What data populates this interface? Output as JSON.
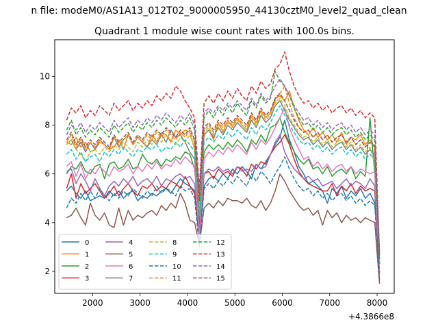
{
  "suptitle": "n file: modeM0/AS1A13_012T02_9000005950_44130cztM0_level2_quad_clean",
  "chart_data": {
    "type": "line",
    "title": "Quadrant 1 module wise count rates with 100.0s bins.",
    "xlabel": "",
    "ylabel": "",
    "x_offset_label": "+4.3866e8",
    "xlim": [
      1200,
      8360
    ],
    "ylim": [
      1.1,
      11.5
    ],
    "xticks": [
      2000,
      3000,
      4000,
      5000,
      6000,
      7000,
      8000
    ],
    "yticks": [
      2,
      4,
      6,
      8,
      10
    ],
    "grid": false,
    "legend_position": "lower-left",
    "legend_columns": 4,
    "x": [
      1450,
      1550,
      1650,
      1750,
      1850,
      1950,
      2050,
      2150,
      2250,
      2350,
      2450,
      2550,
      2650,
      2750,
      2850,
      2950,
      3050,
      3150,
      3250,
      3350,
      3450,
      3550,
      3650,
      3750,
      3850,
      3950,
      4050,
      4150,
      4250,
      4350,
      4450,
      4550,
      4650,
      4750,
      4850,
      4950,
      5050,
      5150,
      5250,
      5350,
      5450,
      5550,
      5650,
      5750,
      5850,
      5950,
      6050,
      6150,
      6250,
      6350,
      6450,
      6550,
      6650,
      6750,
      6850,
      6950,
      7050,
      7150,
      7250,
      7350,
      7450,
      7550,
      7650,
      7750,
      7850,
      7950,
      8050
    ],
    "series": [
      {
        "name": "0",
        "color": "#1f77b4",
        "dash": "solid",
        "values": [
          5.3,
          5.5,
          5.2,
          5.0,
          5.3,
          4.9,
          5.0,
          5.1,
          5.0,
          5.3,
          5.1,
          5.3,
          5.0,
          5.2,
          5.3,
          4.9,
          5.1,
          5.0,
          5.2,
          5.1,
          5.3,
          5.4,
          5.2,
          5.5,
          5.8,
          5.6,
          5.5,
          5.3,
          3.3,
          5.5,
          5.8,
          5.9,
          5.7,
          6.0,
          5.8,
          6.2,
          6.0,
          6.3,
          6.1,
          5.8,
          6.4,
          6.2,
          6.5,
          6.8,
          7.2,
          7.5,
          8.2,
          7.4,
          6.9,
          6.3,
          6.0,
          5.6,
          5.7,
          5.5,
          5.3,
          4.8,
          5.4,
          5.2,
          5.5,
          5.0,
          5.3,
          5.1,
          5.4,
          5.0,
          5.2,
          4.8,
          2.3
        ]
      },
      {
        "name": "1",
        "color": "#ff7f0e",
        "dash": "solid",
        "values": [
          7.3,
          7.2,
          7.5,
          7.1,
          7.3,
          6.9,
          7.0,
          7.3,
          7.2,
          7.0,
          7.1,
          7.4,
          7.0,
          7.6,
          7.2,
          7.5,
          7.3,
          7.1,
          7.6,
          7.3,
          7.7,
          7.6,
          7.3,
          7.8,
          7.6,
          7.8,
          7.7,
          7.0,
          4.0,
          7.6,
          7.8,
          7.4,
          8.1,
          7.7,
          8.2,
          7.9,
          8.3,
          8.0,
          7.8,
          8.4,
          8.1,
          8.6,
          8.3,
          8.5,
          9.1,
          9.2,
          9.0,
          9.4,
          8.7,
          8.2,
          7.8,
          7.6,
          7.9,
          7.5,
          7.7,
          7.4,
          7.6,
          7.3,
          7.7,
          7.2,
          7.5,
          7.4,
          7.6,
          7.2,
          7.4,
          7.1,
          2.6
        ]
      },
      {
        "name": "2",
        "color": "#2ca02c",
        "dash": "solid",
        "values": [
          6.0,
          6.3,
          6.2,
          6.5,
          6.1,
          6.0,
          6.3,
          6.4,
          5.8,
          6.4,
          6.5,
          6.2,
          6.3,
          6.6,
          6.2,
          6.3,
          6.8,
          6.5,
          6.4,
          6.6,
          6.3,
          6.6,
          6.5,
          6.7,
          6.6,
          6.9,
          6.8,
          6.2,
          3.9,
          6.9,
          7.2,
          7.0,
          7.2,
          7.0,
          7.3,
          7.1,
          7.4,
          7.2,
          6.9,
          7.4,
          7.2,
          7.6,
          7.3,
          7.9,
          8.0,
          8.3,
          7.7,
          7.3,
          6.9,
          6.6,
          6.4,
          6.6,
          6.2,
          6.3,
          6.0,
          6.3,
          5.9,
          6.1,
          6.2,
          6.0,
          6.3,
          5.8,
          6.1,
          5.9,
          8.3,
          6.0,
          2.3
        ]
      },
      {
        "name": "3",
        "color": "#d62728",
        "dash": "solid",
        "values": [
          5.4,
          6.0,
          5.0,
          5.6,
          5.2,
          5.4,
          5.6,
          5.3,
          5.0,
          5.2,
          5.5,
          5.1,
          5.4,
          5.6,
          5.3,
          5.1,
          5.5,
          5.4,
          5.6,
          5.3,
          5.5,
          5.4,
          5.7,
          5.6,
          5.4,
          5.9,
          5.5,
          5.2,
          3.5,
          6.0,
          6.1,
          5.8,
          6.2,
          6.0,
          6.1,
          5.9,
          6.3,
          6.2,
          5.9,
          6.4,
          6.2,
          6.5,
          6.4,
          6.8,
          7.1,
          7.3,
          7.6,
          7.2,
          6.6,
          6.1,
          5.8,
          5.6,
          5.5,
          5.4,
          5.3,
          5.3,
          5.6,
          5.1,
          5.5,
          5.3,
          5.6,
          5.2,
          5.5,
          5.3,
          5.4,
          5.3,
          1.6
        ]
      },
      {
        "name": "4",
        "color": "#9467bd",
        "dash": "solid",
        "values": [
          6.1,
          6.2,
          5.6,
          6.0,
          5.7,
          5.3,
          5.8,
          5.4,
          5.1,
          5.5,
          5.7,
          5.5,
          5.8,
          5.6,
          5.9,
          5.5,
          5.7,
          5.8,
          5.6,
          5.9,
          5.5,
          5.8,
          5.7,
          5.9,
          6.0,
          5.8,
          5.9,
          5.6,
          3.7,
          6.0,
          6.2,
          6.1,
          6.3,
          6.1,
          6.2,
          6.0,
          6.3,
          6.1,
          6.2,
          6.1,
          6.4,
          6.2,
          6.3,
          6.8,
          7.3,
          7.6,
          6.9,
          6.5,
          6.2,
          6.0,
          5.8,
          5.9,
          5.7,
          5.8,
          5.5,
          5.6,
          5.7,
          5.4,
          5.6,
          5.8,
          5.5,
          5.7,
          5.6,
          5.4,
          5.8,
          5.5,
          2.3
        ]
      },
      {
        "name": "5",
        "color": "#8c564b",
        "dash": "solid",
        "values": [
          4.2,
          4.3,
          4.6,
          4.2,
          3.9,
          4.8,
          4.3,
          4.1,
          4.4,
          3.9,
          3.8,
          4.6,
          3.9,
          4.5,
          4.1,
          4.3,
          4.2,
          4.4,
          4.5,
          4.3,
          4.7,
          4.5,
          4.8,
          4.6,
          5.2,
          4.8,
          4.1,
          4.0,
          3.1,
          4.6,
          4.8,
          4.6,
          4.9,
          4.7,
          5.0,
          4.9,
          4.9,
          4.8,
          5.0,
          4.7,
          4.6,
          4.9,
          4.5,
          4.8,
          5.3,
          6.0,
          5.7,
          5.3,
          5.0,
          4.7,
          4.5,
          4.6,
          4.3,
          4.5,
          3.9,
          4.5,
          4.2,
          4.4,
          4.0,
          4.3,
          4.1,
          4.2,
          4.0,
          4.2,
          4.1,
          4.0,
          1.5
        ]
      },
      {
        "name": "6",
        "color": "#e377c2",
        "dash": "solid",
        "values": [
          6.3,
          6.5,
          5.9,
          6.4,
          5.8,
          6.2,
          6.0,
          6.3,
          6.1,
          5.9,
          6.3,
          6.1,
          6.2,
          6.4,
          6.0,
          6.3,
          6.1,
          6.4,
          6.2,
          6.5,
          6.2,
          6.4,
          6.3,
          6.6,
          6.4,
          6.7,
          6.5,
          6.3,
          3.4,
          6.6,
          6.9,
          6.7,
          7.0,
          6.8,
          7.1,
          6.9,
          7.2,
          7.0,
          6.8,
          7.3,
          7.0,
          7.4,
          7.2,
          7.5,
          7.9,
          8.3,
          8.7,
          7.9,
          7.4,
          7.0,
          6.6,
          6.7,
          6.3,
          6.5,
          6.2,
          6.4,
          6.1,
          6.3,
          6.4,
          6.1,
          6.3,
          6.0,
          6.2,
          6.1,
          6.0,
          6.1,
          2.0
        ]
      },
      {
        "name": "7",
        "color": "#7f7f7f",
        "dash": "solid",
        "values": [
          7.2,
          7.4,
          7.0,
          7.3,
          6.9,
          7.3,
          7.0,
          7.4,
          7.2,
          7.0,
          7.5,
          7.1,
          7.4,
          7.6,
          7.2,
          7.5,
          7.3,
          7.1,
          7.4,
          7.2,
          7.6,
          7.3,
          7.8,
          7.5,
          7.6,
          7.3,
          6.9,
          6.6,
          4.7,
          7.6,
          7.8,
          7.5,
          7.9,
          7.6,
          8.0,
          7.8,
          8.1,
          7.9,
          7.7,
          8.2,
          7.9,
          8.4,
          8.1,
          8.3,
          8.8,
          9.0,
          8.6,
          8.2,
          7.9,
          7.6,
          7.4,
          7.5,
          7.2,
          7.4,
          7.1,
          7.3,
          7.0,
          7.2,
          7.3,
          7.0,
          7.2,
          6.9,
          7.1,
          6.8,
          7.0,
          6.8,
          2.8
        ]
      },
      {
        "name": "8",
        "color": "#bcbd22",
        "dash": "dashed",
        "values": [
          7.2,
          7.4,
          7.0,
          6.8,
          6.5,
          6.9,
          7.0,
          6.8,
          7.1,
          6.9,
          7.2,
          7.0,
          7.3,
          7.1,
          6.9,
          7.3,
          7.1,
          7.4,
          7.2,
          7.5,
          7.3,
          7.6,
          7.4,
          7.2,
          7.5,
          7.3,
          7.6,
          7.1,
          4.6,
          7.7,
          7.9,
          7.6,
          8.0,
          7.8,
          8.1,
          7.9,
          8.2,
          8.0,
          7.8,
          8.3,
          8.0,
          8.5,
          8.2,
          8.4,
          8.9,
          9.1,
          8.8,
          8.3,
          8.0,
          7.7,
          7.5,
          7.6,
          7.3,
          7.5,
          7.2,
          7.4,
          7.1,
          7.3,
          7.4,
          7.1,
          7.3,
          7.0,
          7.2,
          6.9,
          7.1,
          6.4,
          2.4
        ]
      },
      {
        "name": "9",
        "color": "#17becf",
        "dash": "dashed",
        "values": [
          6.8,
          7.0,
          6.6,
          6.9,
          6.5,
          6.7,
          6.8,
          6.5,
          6.9,
          6.7,
          7.0,
          6.8,
          7.1,
          6.9,
          6.7,
          7.0,
          6.9,
          7.1,
          7.0,
          7.2,
          6.9,
          7.1,
          7.0,
          7.3,
          7.1,
          7.4,
          7.2,
          6.9,
          4.3,
          7.3,
          7.5,
          7.3,
          7.6,
          7.4,
          7.7,
          7.5,
          7.8,
          7.6,
          7.4,
          7.9,
          7.6,
          8.0,
          7.8,
          8.1,
          8.5,
          8.8,
          8.4,
          8.0,
          7.7,
          7.4,
          7.2,
          7.3,
          7.0,
          7.2,
          6.9,
          7.1,
          6.8,
          7.0,
          7.1,
          6.8,
          7.0,
          6.7,
          6.9,
          6.6,
          6.8,
          6.6,
          2.3
        ]
      },
      {
        "name": "10",
        "color": "#1f77b4",
        "dash": "dashed",
        "values": [
          4.6,
          5.0,
          4.8,
          5.2,
          4.9,
          5.3,
          5.0,
          5.4,
          5.1,
          4.9,
          5.2,
          5.0,
          5.3,
          5.1,
          5.4,
          5.2,
          5.0,
          5.3,
          5.1,
          5.5,
          5.2,
          5.4,
          5.3,
          5.1,
          5.5,
          5.3,
          5.4,
          5.0,
          3.0,
          5.4,
          5.6,
          5.4,
          5.7,
          5.5,
          5.8,
          5.6,
          5.9,
          5.7,
          5.5,
          6.0,
          5.7,
          6.1,
          5.9,
          5.6,
          6.0,
          6.3,
          6.7,
          6.2,
          5.8,
          5.5,
          5.3,
          5.4,
          5.1,
          5.3,
          5.0,
          5.2,
          4.9,
          5.1,
          5.2,
          4.9,
          5.1,
          4.8,
          5.0,
          4.7,
          4.9,
          4.7,
          1.9
        ]
      },
      {
        "name": "11",
        "color": "#ff7f0e",
        "dash": "dashed",
        "values": [
          7.3,
          7.6,
          7.1,
          7.4,
          7.0,
          7.3,
          7.1,
          7.4,
          7.2,
          7.0,
          7.5,
          7.2,
          7.4,
          7.6,
          7.2,
          7.5,
          7.3,
          7.6,
          7.4,
          7.7,
          7.5,
          7.8,
          7.6,
          7.4,
          7.7,
          7.5,
          7.8,
          7.3,
          4.8,
          7.8,
          8.0,
          7.7,
          8.1,
          7.9,
          8.2,
          8.0,
          8.3,
          8.1,
          7.9,
          8.4,
          8.1,
          8.6,
          8.3,
          8.5,
          9.0,
          9.3,
          9.6,
          8.9,
          8.3,
          7.9,
          7.7,
          7.8,
          7.5,
          7.7,
          7.4,
          7.6,
          7.3,
          7.5,
          7.6,
          7.3,
          7.5,
          7.2,
          7.4,
          7.1,
          7.3,
          7.1,
          2.6
        ]
      },
      {
        "name": "12",
        "color": "#2ca02c",
        "dash": "dashed",
        "values": [
          7.8,
          8.2,
          7.6,
          7.9,
          7.5,
          7.8,
          7.6,
          7.9,
          7.7,
          7.5,
          8.0,
          7.7,
          7.9,
          8.1,
          7.7,
          8.0,
          7.8,
          8.1,
          7.9,
          8.2,
          8.0,
          8.3,
          8.1,
          7.9,
          8.2,
          8.0,
          8.3,
          7.8,
          5.2,
          8.3,
          8.6,
          8.3,
          8.7,
          8.4,
          8.8,
          8.5,
          8.9,
          8.6,
          8.4,
          9.0,
          8.7,
          9.2,
          8.9,
          9.1,
          10.2,
          9.8,
          9.6,
          9.2,
          8.7,
          8.3,
          8.0,
          8.1,
          7.8,
          8.0,
          7.7,
          7.9,
          7.6,
          7.8,
          7.9,
          7.6,
          7.8,
          7.5,
          7.7,
          7.4,
          7.6,
          7.4,
          2.7
        ]
      },
      {
        "name": "13",
        "color": "#d62728",
        "dash": "dashed",
        "values": [
          8.2,
          8.7,
          8.5,
          8.8,
          8.3,
          8.6,
          8.4,
          8.8,
          8.6,
          8.4,
          8.9,
          8.6,
          8.8,
          9.0,
          8.6,
          8.9,
          8.7,
          9.0,
          8.8,
          9.2,
          9.0,
          9.3,
          9.1,
          9.6,
          9.4,
          9.0,
          8.7,
          8.3,
          5.4,
          8.9,
          9.2,
          8.9,
          9.3,
          9.0,
          9.4,
          9.1,
          9.5,
          9.2,
          9.0,
          9.6,
          9.3,
          9.8,
          9.5,
          9.7,
          10.3,
          10.5,
          11.0,
          10.2,
          9.6,
          9.2,
          8.9,
          9.0,
          8.7,
          8.9,
          8.6,
          8.8,
          8.5,
          8.7,
          8.8,
          8.5,
          8.7,
          8.4,
          8.6,
          8.3,
          8.5,
          8.3,
          2.8
        ]
      },
      {
        "name": "14",
        "color": "#9467bd",
        "dash": "dashed",
        "values": [
          7.6,
          8.0,
          7.8,
          8.1,
          7.7,
          8.0,
          7.8,
          8.1,
          7.9,
          7.7,
          8.2,
          7.9,
          8.1,
          8.3,
          7.9,
          8.2,
          8.0,
          8.3,
          8.1,
          8.4,
          8.2,
          8.5,
          8.3,
          8.1,
          8.4,
          8.2,
          8.5,
          8.0,
          5.2,
          8.5,
          8.7,
          8.5,
          8.8,
          8.6,
          8.9,
          8.7,
          9.0,
          8.8,
          8.6,
          9.1,
          8.8,
          9.3,
          9.0,
          9.2,
          9.6,
          9.9,
          9.6,
          9.2,
          8.8,
          8.5,
          8.2,
          8.3,
          8.0,
          8.2,
          7.9,
          8.1,
          7.8,
          8.0,
          8.1,
          7.8,
          8.0,
          7.7,
          7.9,
          7.6,
          7.8,
          7.6,
          2.7
        ]
      },
      {
        "name": "15",
        "color": "#8c564b",
        "dash": "dashed",
        "values": [
          7.4,
          7.7,
          7.2,
          7.5,
          7.1,
          7.4,
          7.2,
          7.5,
          7.3,
          7.1,
          7.6,
          7.3,
          7.5,
          7.7,
          7.3,
          7.6,
          7.4,
          7.7,
          7.5,
          7.8,
          7.6,
          7.9,
          7.7,
          7.5,
          7.8,
          7.6,
          7.9,
          7.4,
          4.9,
          7.9,
          8.1,
          7.8,
          8.2,
          8.0,
          8.3,
          8.1,
          8.4,
          8.2,
          8.0,
          8.5,
          8.2,
          8.7,
          8.4,
          8.6,
          9.1,
          9.3,
          9.0,
          8.6,
          8.2,
          7.9,
          7.7,
          7.8,
          7.5,
          7.7,
          7.4,
          7.6,
          7.3,
          7.5,
          7.6,
          7.3,
          7.5,
          7.2,
          7.4,
          7.1,
          7.3,
          7.1,
          2.5
        ]
      }
    ]
  }
}
